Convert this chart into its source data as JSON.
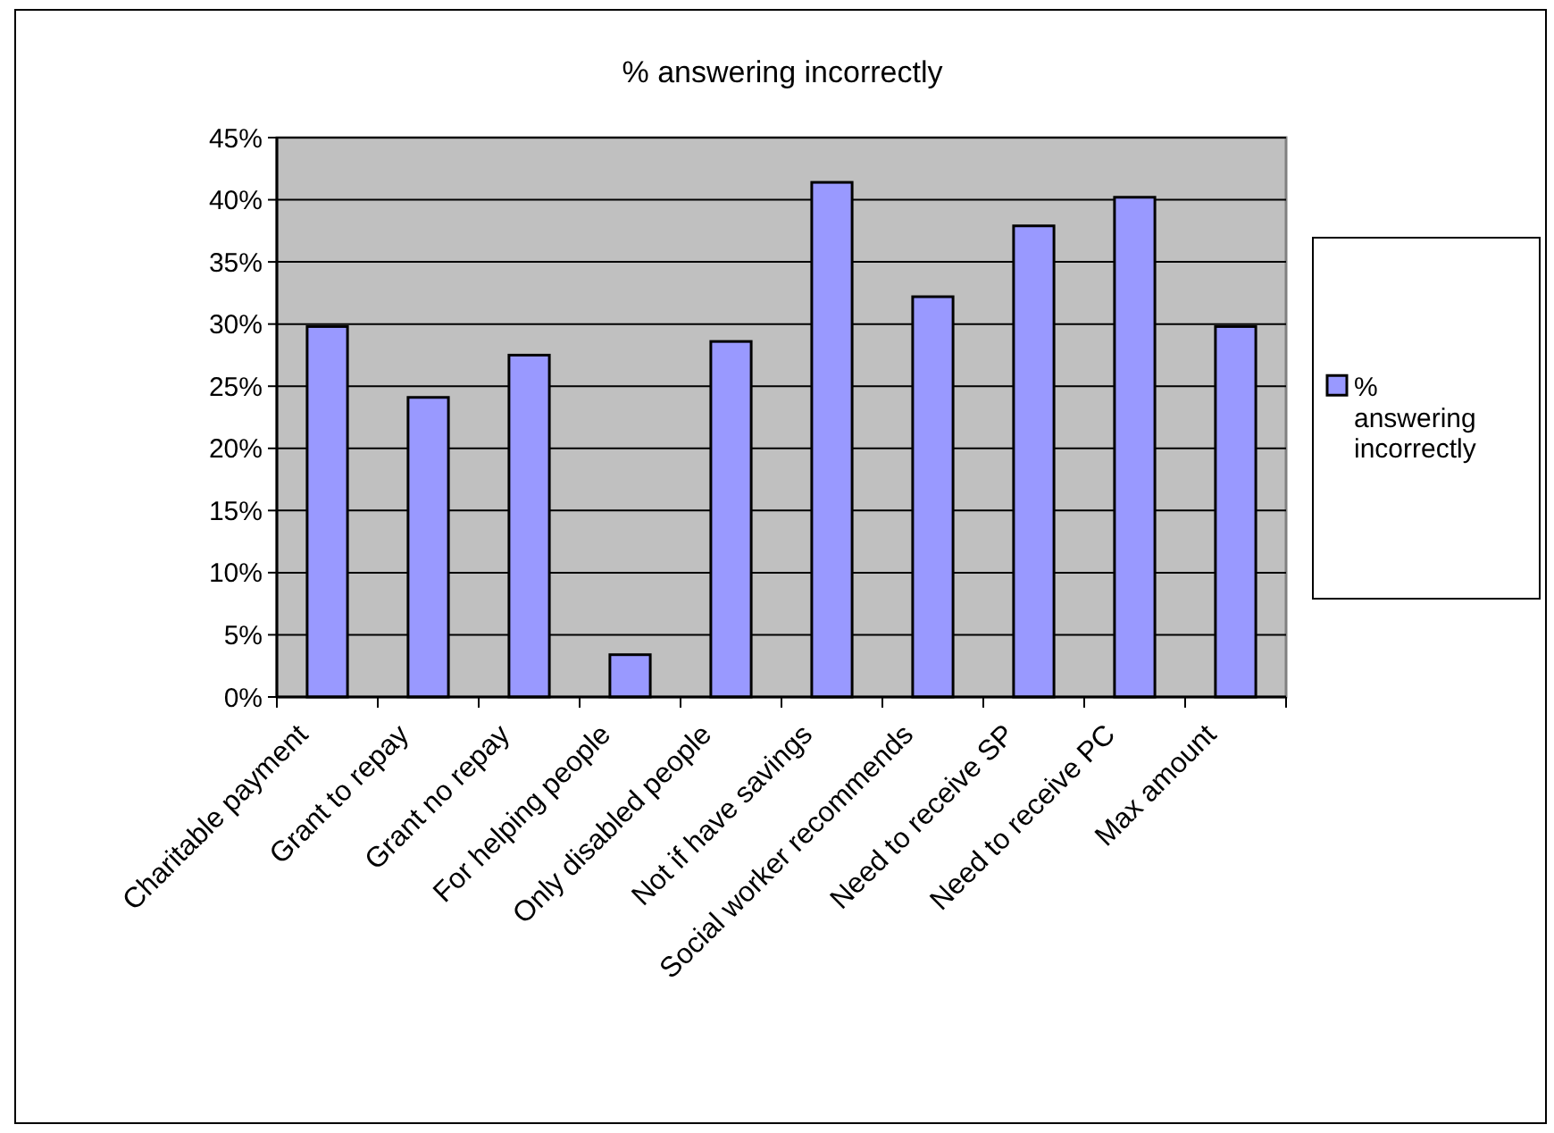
{
  "chart_data": {
    "type": "bar",
    "title": "% answering incorrectly",
    "categories": [
      "Charitable payment",
      "Grant to repay",
      "Grant no repay",
      "For helping people",
      "Only disabled people",
      "Not if have savings",
      "Social worker recommends",
      "Need to receive SP",
      "Need to receive PC",
      "Max amount"
    ],
    "series": [
      {
        "name": "% answering incorrectly",
        "color": "#9999ff",
        "values": [
          29.8,
          24.1,
          27.5,
          3.4,
          28.6,
          41.4,
          32.2,
          37.9,
          40.2,
          29.8
        ]
      }
    ],
    "ylim": [
      0,
      45
    ],
    "yticks": [
      {
        "value": 0,
        "label": "0%"
      },
      {
        "value": 5,
        "label": "5%"
      },
      {
        "value": 10,
        "label": "10%"
      },
      {
        "value": 15,
        "label": "15%"
      },
      {
        "value": 20,
        "label": "20%"
      },
      {
        "value": 25,
        "label": "25%"
      },
      {
        "value": 30,
        "label": "30%"
      },
      {
        "value": 35,
        "label": "35%"
      },
      {
        "value": 40,
        "label": "40%"
      },
      {
        "value": 45,
        "label": "45%"
      }
    ],
    "grid": "y",
    "legend": "right"
  }
}
